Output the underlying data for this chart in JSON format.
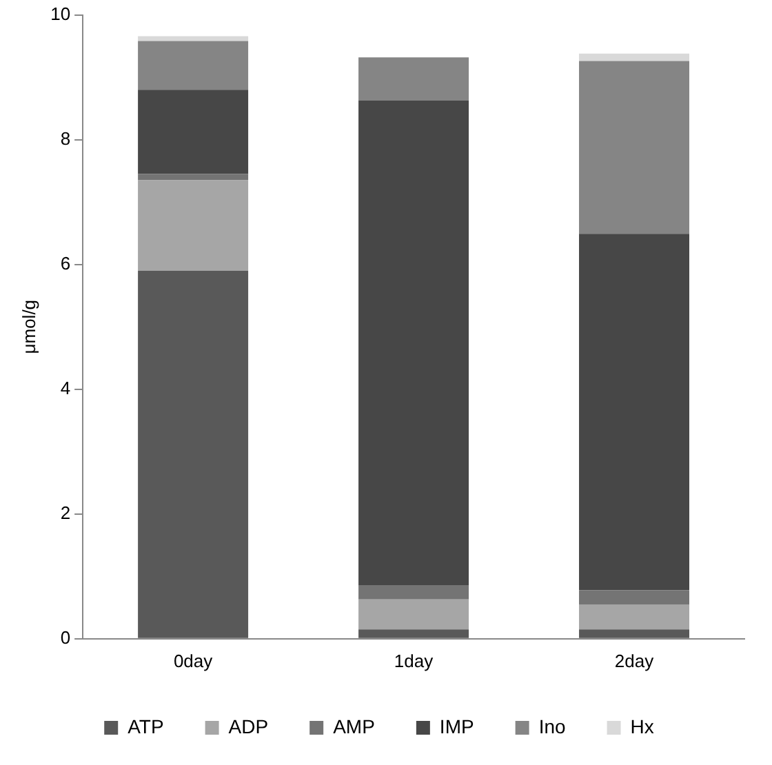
{
  "chart_data": {
    "type": "bar",
    "stacked": true,
    "ylabel": "μmol/g",
    "categories": [
      "0day",
      "1day",
      "2day"
    ],
    "series": [
      {
        "name": "ATP",
        "color": "#595959",
        "values": [
          5.9,
          0.15,
          0.15
        ]
      },
      {
        "name": "ADP",
        "color": "#a6a6a6",
        "values": [
          1.45,
          0.48,
          0.4
        ]
      },
      {
        "name": "AMP",
        "color": "#747474",
        "values": [
          0.1,
          0.22,
          0.23
        ]
      },
      {
        "name": "IMP",
        "color": "#474747",
        "values": [
          1.35,
          7.78,
          5.71
        ]
      },
      {
        "name": "Ino",
        "color": "#858585",
        "values": [
          0.78,
          0.69,
          2.77
        ]
      },
      {
        "name": "Hx",
        "color": "#d9d9d9",
        "values": [
          0.08,
          null,
          0.12
        ]
      }
    ],
    "ylim": [
      0,
      10
    ],
    "yticks": [
      0,
      2,
      4,
      6,
      8,
      10
    ],
    "grid": false,
    "legend": "bottom"
  }
}
